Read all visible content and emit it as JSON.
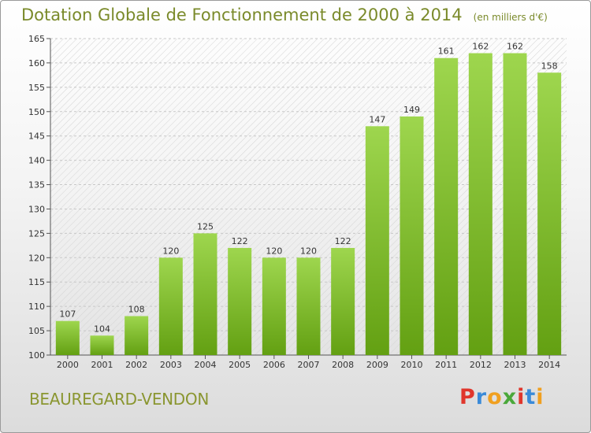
{
  "title": "Dotation Globale de Fonctionnement de 2000 à 2014",
  "unit": "(en milliers d'€)",
  "town": "BEAUREGARD-VENDON",
  "logo": {
    "letters": [
      "P",
      "r",
      "o",
      "x",
      "i",
      "t",
      "i"
    ],
    "colors": [
      "#e0362c",
      "#3a8ad8",
      "#f0a020",
      "#4aa83a",
      "#e0362c",
      "#3a8ad8",
      "#f0a020"
    ]
  },
  "colors": {
    "bar_top": "#9ed64e",
    "bar_bottom": "#63a012",
    "title": "#7a8a2a"
  },
  "chart_data": {
    "type": "bar",
    "title": "Dotation Globale de Fonctionnement de 2000 à 2014",
    "subtitle": "(en milliers d'€)",
    "categories": [
      "2000",
      "2001",
      "2002",
      "2003",
      "2004",
      "2005",
      "2006",
      "2007",
      "2008",
      "2009",
      "2010",
      "2011",
      "2012",
      "2013",
      "2014"
    ],
    "values": [
      107,
      104,
      108,
      120,
      125,
      122,
      120,
      120,
      122,
      147,
      149,
      161,
      162,
      162,
      158
    ],
    "ylim": [
      100,
      165
    ],
    "yticks": [
      100,
      105,
      110,
      115,
      120,
      125,
      130,
      135,
      140,
      145,
      150,
      155,
      160,
      165
    ],
    "grid": true,
    "data_labels": true
  }
}
